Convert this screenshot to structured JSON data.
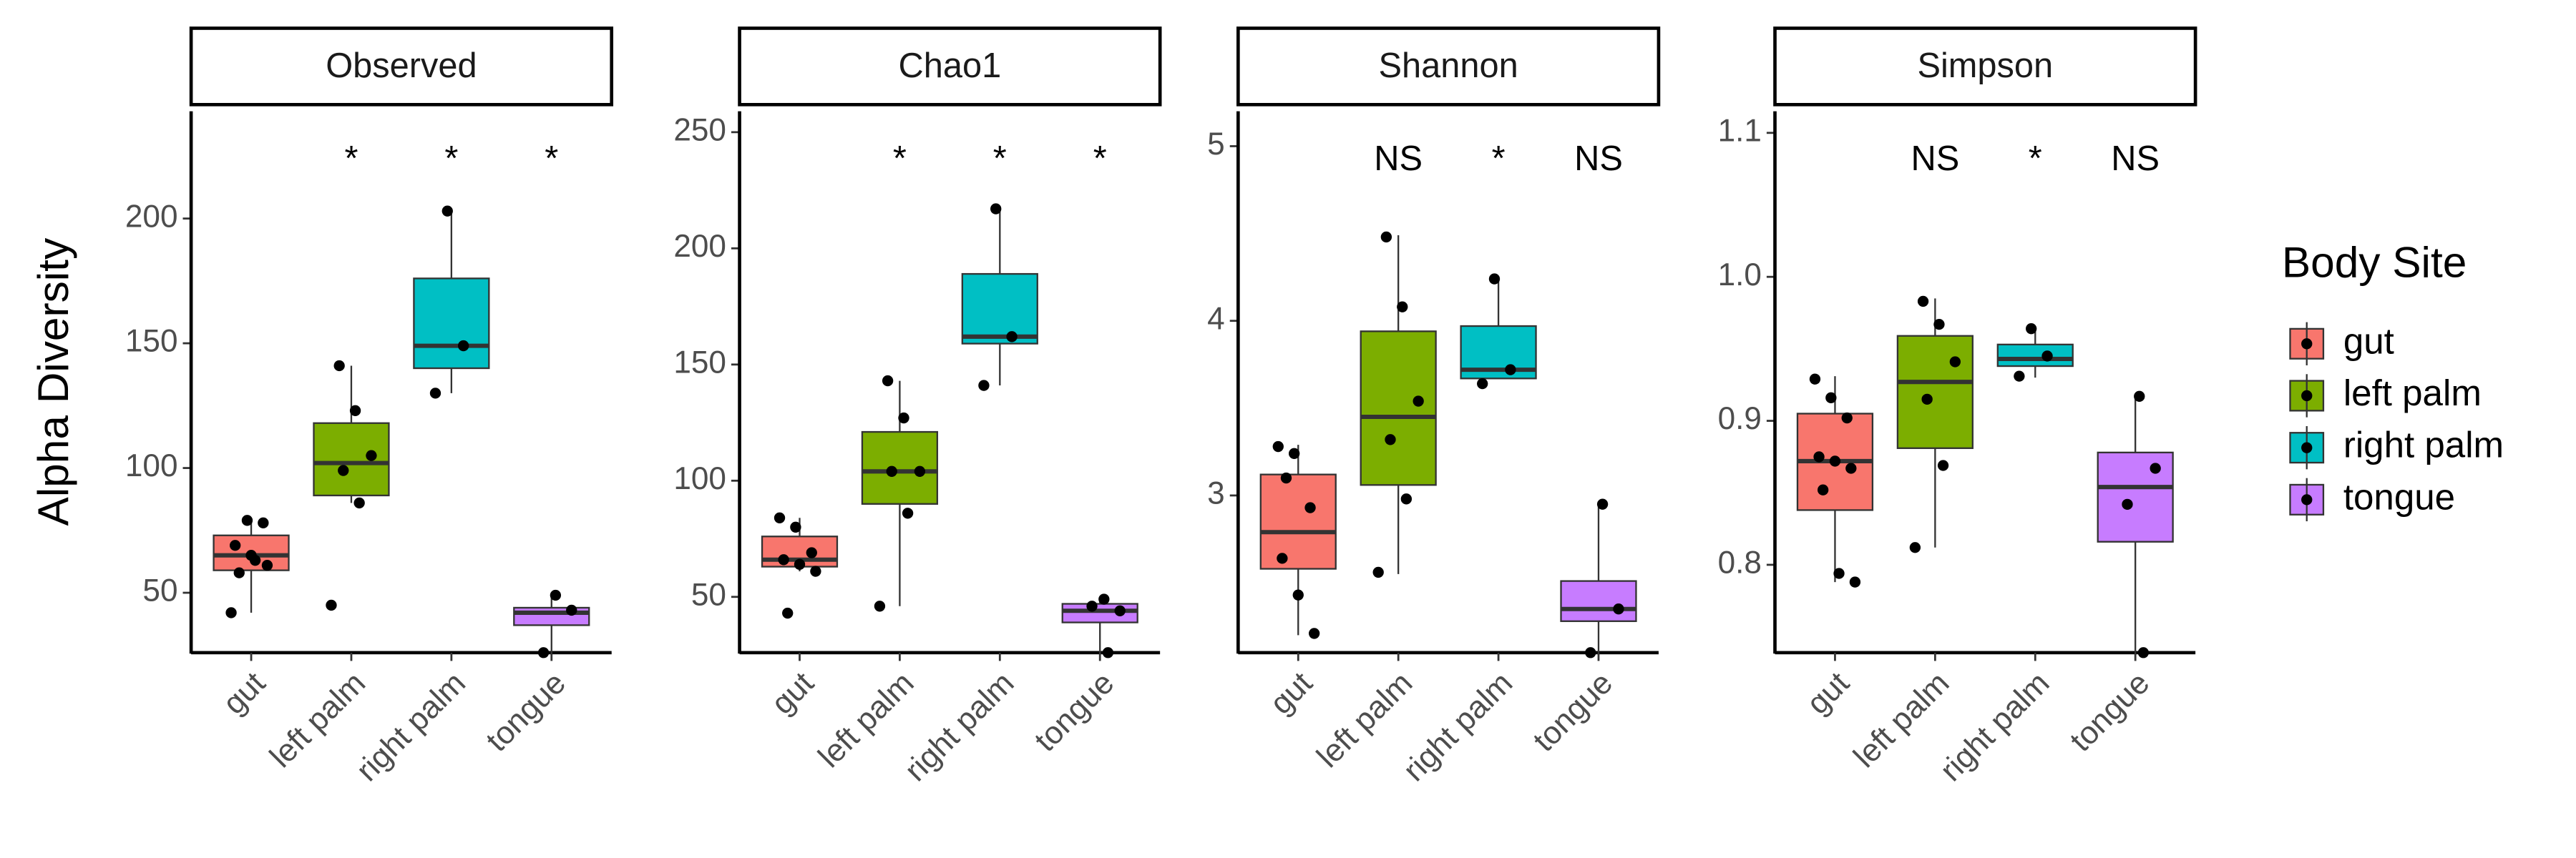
{
  "y_label": "Alpha Diversity",
  "legend": {
    "title": "Body Site",
    "entries": [
      "gut",
      "left palm",
      "right palm",
      "tongue"
    ],
    "colors": [
      "#F8766D",
      "#7CAE00",
      "#00BFC4",
      "#C77CFF"
    ]
  },
  "chart_data": [
    {
      "type": "box",
      "title": "Observed",
      "categories": [
        "gut",
        "left palm",
        "right palm",
        "tongue"
      ],
      "ylim": [
        26,
        243
      ],
      "yticks": [
        50,
        100,
        150,
        200
      ],
      "boxes": [
        {
          "whisker_low": 42,
          "q1": 59,
          "median": 65,
          "q3": 73,
          "whisker_high": 79,
          "points": [
            42,
            79,
            78,
            69,
            65,
            61,
            58,
            63
          ]
        },
        {
          "whisker_low": 86,
          "q1": 89,
          "median": 102,
          "q3": 118,
          "whisker_high": 141,
          "points": [
            141,
            123,
            105,
            99,
            86,
            45
          ]
        },
        {
          "whisker_low": 130,
          "q1": 140,
          "median": 149,
          "q3": 176,
          "whisker_high": 203,
          "points": [
            203,
            149,
            130
          ]
        },
        {
          "whisker_low": 26,
          "q1": 37,
          "median": 42,
          "q3": 44,
          "whisker_high": 49,
          "points": [
            49,
            43,
            26
          ]
        }
      ],
      "annotations": [
        {
          "category": "left palm",
          "text": "*"
        },
        {
          "category": "right palm",
          "text": "*"
        },
        {
          "category": "tongue",
          "text": "*"
        }
      ]
    },
    {
      "type": "box",
      "title": "Chao1",
      "categories": [
        "gut",
        "left palm",
        "right palm",
        "tongue"
      ],
      "ylim": [
        26,
        259
      ],
      "yticks": [
        50,
        100,
        150,
        200,
        250
      ],
      "boxes": [
        {
          "whisker_low": 61,
          "q1": 63,
          "median": 66,
          "q3": 76,
          "whisker_high": 84,
          "points": [
            84,
            80,
            69,
            66,
            64,
            61,
            43
          ]
        },
        {
          "whisker_low": 46,
          "q1": 90,
          "median": 104,
          "q3": 121,
          "whisker_high": 143,
          "points": [
            143,
            127,
            104,
            104,
            86,
            46
          ]
        },
        {
          "whisker_low": 141,
          "q1": 159,
          "median": 162,
          "q3": 189,
          "whisker_high": 217,
          "points": [
            217,
            162,
            141
          ]
        },
        {
          "whisker_low": 26,
          "q1": 39,
          "median": 44,
          "q3": 47,
          "whisker_high": 50,
          "points": [
            49,
            44,
            46,
            26
          ]
        }
      ],
      "annotations": [
        {
          "category": "left palm",
          "text": "*"
        },
        {
          "category": "right palm",
          "text": "*"
        },
        {
          "category": "tongue",
          "text": "*"
        }
      ]
    },
    {
      "type": "box",
      "title": "Shannon",
      "categories": [
        "gut",
        "left palm",
        "right palm",
        "tongue"
      ],
      "ylim": [
        2.1,
        5.2
      ],
      "yticks": [
        3,
        4,
        5
      ],
      "boxes": [
        {
          "whisker_low": 2.2,
          "q1": 2.58,
          "median": 2.79,
          "q3": 3.12,
          "whisker_high": 3.29,
          "points": [
            3.28,
            3.24,
            2.93,
            2.64,
            2.43,
            2.21,
            3.1
          ]
        },
        {
          "whisker_low": 2.55,
          "q1": 3.06,
          "median": 3.45,
          "q3": 3.94,
          "whisker_high": 4.49,
          "points": [
            4.48,
            4.08,
            3.54,
            3.32,
            2.98,
            2.56
          ]
        },
        {
          "whisker_low": 3.67,
          "q1": 3.67,
          "median": 3.72,
          "q3": 3.97,
          "whisker_high": 4.24,
          "points": [
            4.24,
            3.72,
            3.64
          ]
        },
        {
          "whisker_low": 2.1,
          "q1": 2.28,
          "median": 2.35,
          "q3": 2.51,
          "whisker_high": 2.95,
          "points": [
            2.95,
            2.35,
            2.1
          ]
        }
      ],
      "annotations": [
        {
          "category": "left palm",
          "text": "NS"
        },
        {
          "category": "right palm",
          "text": "*"
        },
        {
          "category": "tongue",
          "text": "NS"
        }
      ]
    },
    {
      "type": "box",
      "title": "Simpson",
      "categories": [
        "gut",
        "left palm",
        "right palm",
        "tongue"
      ],
      "ylim": [
        0.739,
        1.115
      ],
      "yticks": [
        0.8,
        0.9,
        {
          "value": 1,
          "label": "1.0"
        },
        1.1
      ],
      "boxes": [
        {
          "whisker_low": 0.788,
          "q1": 0.838,
          "median": 0.872,
          "q3": 0.905,
          "whisker_high": 0.931,
          "points": [
            0.929,
            0.916,
            0.902,
            0.875,
            0.872,
            0.867,
            0.852,
            0.794,
            0.788
          ]
        },
        {
          "whisker_low": 0.812,
          "q1": 0.881,
          "median": 0.927,
          "q3": 0.959,
          "whisker_high": 0.985,
          "points": [
            0.983,
            0.967,
            0.941,
            0.915,
            0.869,
            0.812
          ]
        },
        {
          "whisker_low": 0.93,
          "q1": 0.938,
          "median": 0.943,
          "q3": 0.953,
          "whisker_high": 0.965,
          "points": [
            0.964,
            0.945,
            0.931
          ]
        },
        {
          "whisker_low": 0.739,
          "q1": 0.816,
          "median": 0.854,
          "q3": 0.878,
          "whisker_high": 0.918,
          "points": [
            0.917,
            0.867,
            0.842,
            0.739
          ]
        }
      ],
      "annotations": [
        {
          "category": "left palm",
          "text": "NS"
        },
        {
          "category": "right palm",
          "text": "*"
        },
        {
          "category": "tongue",
          "text": "NS"
        }
      ]
    }
  ]
}
